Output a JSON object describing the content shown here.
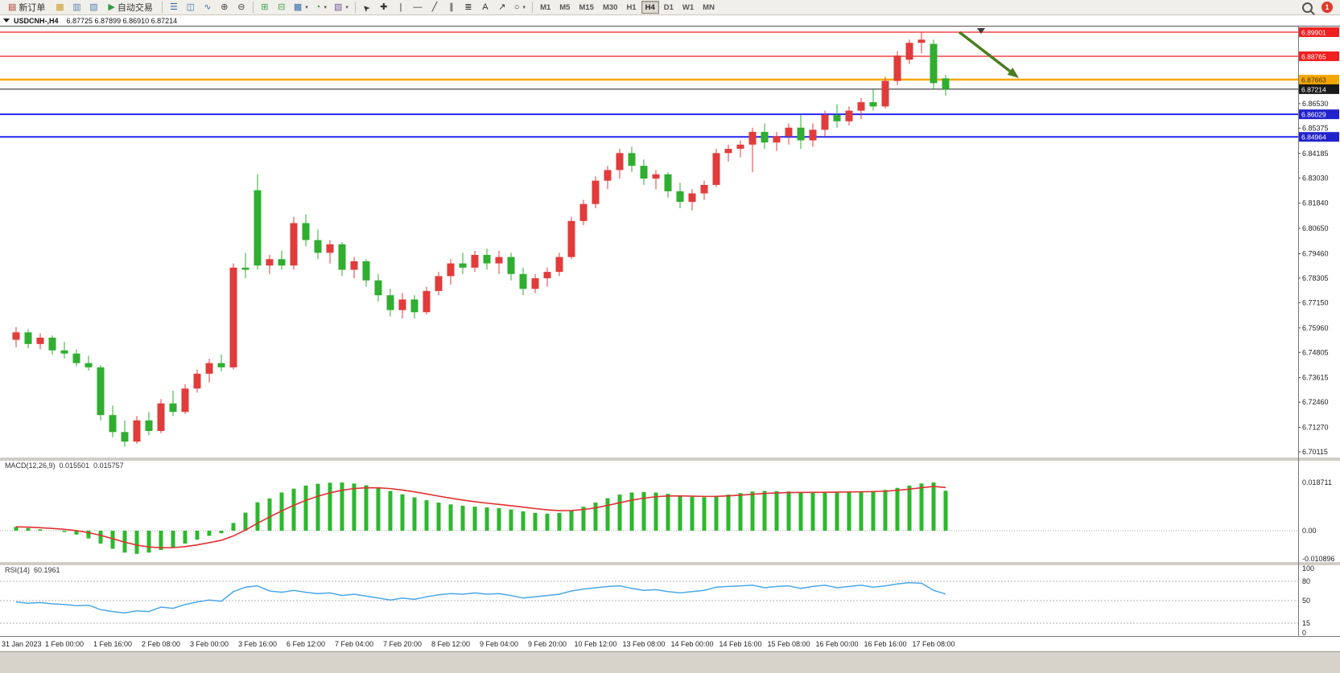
{
  "app": {
    "toolbar": {
      "active_timeframe": "H4",
      "notification_count": "1",
      "items": [
        {
          "kind": "button",
          "name": "new-order-button",
          "glyph": "▤",
          "glyph_color": "#b3342f",
          "label": "新订单"
        },
        {
          "kind": "icon",
          "name": "market-watch-icon",
          "glyph": "▦",
          "color": "#c99a2e"
        },
        {
          "kind": "icon",
          "name": "data-window-icon",
          "glyph": "▥",
          "color": "#5b82b5"
        },
        {
          "kind": "icon",
          "name": "terminal-icon",
          "glyph": "▧",
          "color": "#5b82b5"
        },
        {
          "kind": "button",
          "name": "autotrading-button",
          "glyph": "▶",
          "glyph_color": "#2e9e3f",
          "label": "自动交易"
        },
        {
          "kind": "sep"
        },
        {
          "kind": "icon",
          "name": "bar-chart-icon",
          "glyph": "☰",
          "color": "#3a6ea8"
        },
        {
          "kind": "icon",
          "name": "candlestick-chart-icon",
          "glyph": "◫",
          "color": "#3a6ea8"
        },
        {
          "kind": "icon",
          "name": "line-chart-icon",
          "glyph": "∿",
          "color": "#3a6ea8"
        },
        {
          "kind": "icon",
          "name": "zoom-in-icon",
          "glyph": "⊕",
          "color": "#444444"
        },
        {
          "kind": "icon",
          "name": "zoom-out-icon",
          "glyph": "⊖",
          "color": "#444444"
        },
        {
          "kind": "sep"
        },
        {
          "kind": "icon",
          "name": "tile-windows-icon",
          "glyph": "⊞",
          "color": "#3f9e4d"
        },
        {
          "kind": "icon",
          "name": "auto-arrange-icon",
          "glyph": "⊟",
          "color": "#3f9e4d"
        },
        {
          "kind": "dropdown",
          "name": "new-chart-dropdown",
          "glyph": "▩",
          "color": "#3a6ea8"
        },
        {
          "kind": "dropdown",
          "name": "profiles-dropdown",
          "glyph": "◔",
          "color": "#2e9e3f"
        },
        {
          "kind": "dropdown",
          "name": "templates-dropdown",
          "glyph": "▨",
          "color": "#7a5c9e"
        },
        {
          "kind": "sep"
        },
        {
          "kind": "icon",
          "name": "cursor-icon",
          "glyph": "➤",
          "color": "#333333",
          "rotate": -135
        },
        {
          "kind": "icon",
          "name": "crosshair-icon",
          "glyph": "✚",
          "color": "#333333"
        },
        {
          "kind": "icon",
          "name": "vertical-line-icon",
          "glyph": "|",
          "color": "#333333"
        },
        {
          "kind": "icon",
          "name": "horizontal-line-icon",
          "glyph": "—",
          "color": "#333333"
        },
        {
          "kind": "icon",
          "name": "trendline-icon",
          "glyph": "╱",
          "color": "#333333"
        },
        {
          "kind": "icon",
          "name": "channel-icon",
          "glyph": "∥",
          "color": "#333333"
        },
        {
          "kind": "icon",
          "name": "fibonacci-icon",
          "glyph": "≣",
          "color": "#333333"
        },
        {
          "kind": "icon",
          "name": "text-label-icon",
          "glyph": "A",
          "color": "#333333"
        },
        {
          "kind": "icon",
          "name": "arrows-icon",
          "glyph": "↗",
          "color": "#333333"
        },
        {
          "kind": "dropdown",
          "name": "shapes-dropdown",
          "glyph": "○",
          "color": "#333333"
        },
        {
          "kind": "sep"
        },
        {
          "kind": "tf",
          "name": "timeframe-m1-button",
          "label": "M1"
        },
        {
          "kind": "tf",
          "name": "timeframe-m5-button",
          "label": "M5"
        },
        {
          "kind": "tf",
          "name": "timeframe-m15-button",
          "label": "M15"
        },
        {
          "kind": "tf",
          "name": "timeframe-m30-button",
          "label": "M30"
        },
        {
          "kind": "tf",
          "name": "timeframe-h1-button",
          "label": "H1"
        },
        {
          "kind": "tf",
          "name": "timeframe-h4-button",
          "label": "H4"
        },
        {
          "kind": "tf",
          "name": "timeframe-d1-button",
          "label": "D1"
        },
        {
          "kind": "tf",
          "name": "timeframe-w1-button",
          "label": "W1"
        },
        {
          "kind": "tf",
          "name": "timeframe-mn-button",
          "label": "MN"
        },
        {
          "kind": "spacer"
        },
        {
          "kind": "magnifier",
          "name": "search-icon"
        },
        {
          "kind": "badge",
          "name": "notification-badge",
          "label": "1"
        }
      ]
    },
    "chart_title": {
      "symbol": "USDCNH-,H4",
      "ohlc": "6.87725 6.87899 6.86910 6.87214"
    }
  },
  "chart_data": {
    "type": "candlestick",
    "symbol": "USDCNH-",
    "timeframe": "H4",
    "current_bar": {
      "open": 6.87725,
      "high": 6.87899,
      "low": 6.8691,
      "close": 6.87214
    },
    "convention": "red=bullish, green=bearish",
    "bull_color": "#e23b3b",
    "bear_color": "#2fae2f",
    "time_labels": [
      "31 Jan 2023",
      "1 Feb 00:00",
      "1 Feb 16:00",
      "2 Feb 08:00",
      "3 Feb 00:00",
      "3 Feb 16:00",
      "6 Feb 12:00",
      "7 Feb 04:00",
      "7 Feb 20:00",
      "8 Feb 12:00",
      "9 Feb 04:00",
      "9 Feb 20:00",
      "10 Feb 12:00",
      "13 Feb 08:00",
      "14 Feb 00:00",
      "14 Feb 16:00",
      "15 Feb 08:00",
      "16 Feb 00:00",
      "16 Feb 16:00",
      "17 Feb 08:00"
    ],
    "price_axis_ticks": [
      6.8653,
      6.85375,
      6.84185,
      6.8303,
      6.8184,
      6.8065,
      6.7946,
      6.78305,
      6.7715,
      6.7596,
      6.74805,
      6.73615,
      6.7246,
      6.7127,
      6.70115
    ],
    "price_lines": [
      {
        "price": 6.89901,
        "label": "6.89901",
        "color": "#f02020",
        "width": 1.2,
        "badge_bg": "#f02020",
        "badge_fg": "#ffffff"
      },
      {
        "price": 6.88765,
        "label": "6.88765",
        "color": "#f02020",
        "width": 1.2,
        "badge_bg": "#f02020",
        "badge_fg": "#ffffff"
      },
      {
        "price": 6.87663,
        "label": "6.87663",
        "color": "#f5a800",
        "width": 2.5,
        "badge_bg": "#f5a800",
        "badge_fg": "#3a2a00"
      },
      {
        "price": 6.87214,
        "label": "6.87214",
        "color": "#1a1a1a",
        "width": 1,
        "badge_bg": "#1a1a1a",
        "badge_fg": "#ffffff"
      },
      {
        "price": 6.86029,
        "label": "6.86029",
        "color": "#2626ee",
        "width": 2,
        "badge_bg": "#2222cc",
        "badge_fg": "#ffffff"
      },
      {
        "price": 6.84964,
        "label": "6.84964",
        "color": "#2626ee",
        "width": 2,
        "badge_bg": "#2222cc",
        "badge_fg": "#ffffff"
      }
    ],
    "candles": [
      [
        6.754,
        6.76,
        6.7505,
        6.7575
      ],
      [
        6.7575,
        6.759,
        6.75,
        6.752
      ],
      [
        6.752,
        6.757,
        6.7495,
        6.755
      ],
      [
        6.755,
        6.756,
        6.747,
        6.749
      ],
      [
        6.749,
        6.753,
        6.745,
        6.7475
      ],
      [
        6.7475,
        6.7495,
        6.7415,
        6.743
      ],
      [
        6.743,
        6.7465,
        6.7395,
        6.741
      ],
      [
        6.741,
        6.742,
        6.716,
        6.7185
      ],
      [
        6.7185,
        6.723,
        6.708,
        6.7105
      ],
      [
        6.7105,
        6.716,
        6.7035,
        6.706
      ],
      [
        6.706,
        6.718,
        6.705,
        6.716
      ],
      [
        6.716,
        6.72,
        6.709,
        6.711
      ],
      [
        6.711,
        6.726,
        6.71,
        6.724
      ],
      [
        6.724,
        6.73,
        6.718,
        6.72
      ],
      [
        6.72,
        6.733,
        6.719,
        6.731
      ],
      [
        6.731,
        6.74,
        6.729,
        6.738
      ],
      [
        6.738,
        6.745,
        6.734,
        6.743
      ],
      [
        6.743,
        6.747,
        6.739,
        6.741
      ],
      [
        6.741,
        6.79,
        6.74,
        6.788
      ],
      [
        6.788,
        6.795,
        6.783,
        6.787
      ],
      [
        6.8245,
        6.832,
        6.787,
        6.789
      ],
      [
        6.789,
        6.794,
        6.785,
        6.792
      ],
      [
        6.792,
        6.796,
        6.787,
        6.789
      ],
      [
        6.789,
        6.812,
        6.787,
        6.809
      ],
      [
        6.809,
        6.813,
        6.798,
        6.801
      ],
      [
        6.801,
        6.806,
        6.792,
        6.795
      ],
      [
        6.795,
        6.801,
        6.79,
        6.799
      ],
      [
        6.799,
        6.8,
        6.784,
        6.787
      ],
      [
        6.787,
        6.793,
        6.783,
        6.791
      ],
      [
        6.791,
        6.792,
        6.779,
        6.782
      ],
      [
        6.782,
        6.785,
        6.772,
        6.775
      ],
      [
        6.775,
        6.778,
        6.765,
        6.768
      ],
      [
        6.768,
        6.776,
        6.764,
        6.773
      ],
      [
        6.773,
        6.775,
        6.764,
        6.767
      ],
      [
        6.767,
        6.779,
        6.766,
        6.777
      ],
      [
        6.777,
        6.786,
        6.775,
        6.784
      ],
      [
        6.784,
        6.792,
        6.78,
        6.79
      ],
      [
        6.79,
        6.795,
        6.785,
        6.788
      ],
      [
        6.788,
        6.796,
        6.786,
        6.794
      ],
      [
        6.794,
        6.797,
        6.787,
        6.79
      ],
      [
        6.79,
        6.796,
        6.785,
        6.793
      ],
      [
        6.793,
        6.795,
        6.782,
        6.785
      ],
      [
        6.785,
        6.788,
        6.775,
        6.778
      ],
      [
        6.778,
        6.785,
        6.776,
        6.783
      ],
      [
        6.783,
        6.788,
        6.779,
        6.786
      ],
      [
        6.786,
        6.795,
        6.784,
        6.793
      ],
      [
        6.793,
        6.812,
        6.792,
        6.81
      ],
      [
        6.81,
        6.82,
        6.808,
        6.818
      ],
      [
        6.818,
        6.831,
        6.816,
        6.829
      ],
      [
        6.829,
        6.836,
        6.825,
        6.834
      ],
      [
        6.834,
        6.844,
        6.83,
        6.842
      ],
      [
        6.842,
        6.845,
        6.833,
        6.836
      ],
      [
        6.836,
        6.839,
        6.827,
        6.83
      ],
      [
        6.83,
        6.834,
        6.825,
        6.832
      ],
      [
        6.832,
        6.833,
        6.821,
        6.824
      ],
      [
        6.824,
        6.828,
        6.816,
        6.819
      ],
      [
        6.819,
        6.825,
        6.815,
        6.823
      ],
      [
        6.823,
        6.829,
        6.82,
        6.827
      ],
      [
        6.827,
        6.844,
        6.826,
        6.842
      ],
      [
        6.842,
        6.846,
        6.838,
        6.844
      ],
      [
        6.844,
        6.848,
        6.84,
        6.846
      ],
      [
        6.846,
        6.854,
        6.833,
        6.852
      ],
      [
        6.852,
        6.856,
        6.844,
        6.847
      ],
      [
        6.847,
        6.852,
        6.843,
        6.85
      ],
      [
        6.85,
        6.856,
        6.846,
        6.854
      ],
      [
        6.854,
        6.86,
        6.844,
        6.848
      ],
      [
        6.848,
        6.856,
        6.845,
        6.853
      ],
      [
        6.853,
        6.862,
        6.85,
        6.86
      ],
      [
        6.86,
        6.865,
        6.854,
        6.857
      ],
      [
        6.857,
        6.864,
        6.855,
        6.862
      ],
      [
        6.862,
        6.868,
        6.858,
        6.866
      ],
      [
        6.866,
        6.872,
        6.862,
        6.864
      ],
      [
        6.864,
        6.878,
        6.863,
        6.876
      ],
      [
        6.876,
        6.89,
        6.874,
        6.888
      ],
      [
        6.886,
        6.8955,
        6.884,
        6.894
      ],
      [
        6.894,
        6.899,
        6.889,
        6.8955
      ],
      [
        6.8935,
        6.8955,
        6.872,
        6.875
      ],
      [
        6.87725,
        6.87899,
        6.8691,
        6.87214
      ]
    ],
    "annotation_arrow": {
      "color": "#4a7d1f"
    },
    "macd": {
      "label": "MACD(12,26,9)",
      "value_main": "0.015501",
      "value_signal": "0.015757",
      "axis_labels": [
        "0.018711",
        "0.00",
        "-0.010896"
      ],
      "hist_color": "#2db82d",
      "signal_color": "#e03030",
      "histogram": [
        0.0015,
        0.001,
        0.0005,
        0,
        -0.0005,
        -0.0015,
        -0.003,
        -0.005,
        -0.007,
        -0.0085,
        -0.009,
        -0.0085,
        -0.0075,
        -0.0065,
        -0.005,
        -0.0035,
        -0.002,
        -0.001,
        0.003,
        0.007,
        0.011,
        0.0125,
        0.0148,
        0.0163,
        0.0175,
        0.0182,
        0.0186,
        0.0187,
        0.0183,
        0.0176,
        0.0166,
        0.0154,
        0.0141,
        0.0129,
        0.0118,
        0.0109,
        0.0102,
        0.0097,
        0.0093,
        0.009,
        0.0087,
        0.0082,
        0.0075,
        0.0069,
        0.0066,
        0.0069,
        0.0079,
        0.0093,
        0.0109,
        0.0126,
        0.014,
        0.0148,
        0.015,
        0.0148,
        0.0143,
        0.0136,
        0.0131,
        0.013,
        0.0134,
        0.014,
        0.0146,
        0.0152,
        0.0154,
        0.0153,
        0.0152,
        0.015,
        0.0149,
        0.015,
        0.0151,
        0.0152,
        0.0153,
        0.0154,
        0.0158,
        0.0166,
        0.0175,
        0.0183,
        0.01871,
        0.015501
      ]
    },
    "rsi": {
      "label": "RSI(14)",
      "value": "60.1961",
      "axis_labels": [
        "100",
        "80",
        "50",
        "15",
        "0"
      ],
      "levels": [
        80,
        50,
        15
      ],
      "line_color": "#4aa8e8",
      "values": [
        48,
        46,
        47,
        45,
        44,
        42,
        43,
        36,
        33,
        31,
        34,
        33,
        40,
        38,
        44,
        48,
        51,
        49,
        64,
        71,
        73,
        65,
        63,
        66,
        63,
        61,
        62,
        58,
        60,
        57,
        54,
        51,
        54,
        52,
        56,
        59,
        61,
        60,
        62,
        60,
        61,
        58,
        54,
        56,
        58,
        60,
        65,
        68,
        70,
        72,
        73,
        69,
        66,
        67,
        64,
        62,
        64,
        66,
        71,
        72,
        73,
        74,
        70,
        72,
        73,
        69,
        72,
        74,
        70,
        72,
        74,
        71,
        73,
        76,
        78,
        77,
        66,
        60.2
      ]
    }
  }
}
